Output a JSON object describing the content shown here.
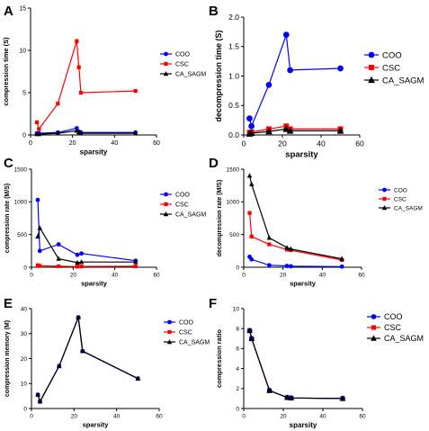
{
  "colors": {
    "COO": "#0000ff",
    "CSC": "#ff0000",
    "CA_SAGM": "#000000"
  },
  "chart_data": [
    {
      "panel": "A",
      "type": "line",
      "xlabel": "sparsity",
      "ylabel": "compression time (S)",
      "xlim": [
        0,
        60
      ],
      "ylim": [
        0,
        15
      ],
      "xticks": [
        0,
        20,
        40,
        60
      ],
      "yticks": [
        0,
        5,
        10,
        15
      ],
      "legend_position": "right",
      "series": [
        {
          "name": "COO",
          "x": [
            3,
            4,
            13,
            22,
            23,
            24,
            50
          ],
          "y": [
            0.2,
            0.2,
            0.3,
            0.8,
            0.4,
            0.3,
            0.3
          ]
        },
        {
          "name": "CSC",
          "x": [
            3,
            4,
            13,
            22,
            23,
            24,
            50
          ],
          "y": [
            1.5,
            0.7,
            3.7,
            11.1,
            8.0,
            5.0,
            5.2
          ]
        },
        {
          "name": "CA_SAGM",
          "x": [
            3,
            4,
            13,
            22,
            23,
            24,
            50
          ],
          "y": [
            0.1,
            0.1,
            0.2,
            0.5,
            0.3,
            0.2,
            0.2
          ]
        }
      ]
    },
    {
      "panel": "B",
      "type": "line",
      "xlabel": "sparsity",
      "ylabel": "decompression time (S)",
      "xlim": [
        0,
        60
      ],
      "ylim": [
        0,
        2.0
      ],
      "xticks": [
        0,
        20,
        40,
        60
      ],
      "yticks": [
        0.0,
        0.5,
        1.0,
        1.5,
        2.0
      ],
      "legend_position": "right",
      "series": [
        {
          "name": "COO",
          "x": [
            3,
            4,
            13,
            22,
            24,
            50
          ],
          "y": [
            0.28,
            0.15,
            0.85,
            1.7,
            1.1,
            1.13
          ]
        },
        {
          "name": "CSC",
          "x": [
            3,
            4,
            13,
            22,
            24,
            50
          ],
          "y": [
            0.04,
            0.05,
            0.1,
            0.15,
            0.1,
            0.1
          ]
        },
        {
          "name": "CA_SAGM",
          "x": [
            3,
            4,
            13,
            22,
            24,
            50
          ],
          "y": [
            0.02,
            0.03,
            0.06,
            0.1,
            0.07,
            0.07
          ]
        }
      ]
    },
    {
      "panel": "C",
      "type": "line",
      "xlabel": "sparsity",
      "ylabel": "compression rate (M/S)",
      "xlim": [
        0,
        60
      ],
      "ylim": [
        0,
        1500
      ],
      "xticks": [
        0,
        20,
        40,
        60
      ],
      "yticks": [
        0,
        500,
        1000,
        1500
      ],
      "legend_position": "right",
      "series": [
        {
          "name": "COO",
          "x": [
            3,
            4,
            13,
            22,
            24,
            50
          ],
          "y": [
            1030,
            250,
            350,
            190,
            210,
            100
          ]
        },
        {
          "name": "CSC",
          "x": [
            3,
            4,
            13,
            22,
            24,
            50
          ],
          "y": [
            30,
            20,
            15,
            10,
            12,
            15
          ]
        },
        {
          "name": "CA_SAGM",
          "x": [
            3,
            4,
            13,
            22,
            24,
            50
          ],
          "y": [
            470,
            600,
            130,
            70,
            80,
            80
          ]
        }
      ]
    },
    {
      "panel": "D",
      "type": "line",
      "xlabel": "sparsity",
      "ylabel": "decompression rate (M/S)",
      "xlim": [
        0,
        60
      ],
      "ylim": [
        0,
        1500
      ],
      "xticks": [
        0,
        20,
        40,
        60
      ],
      "yticks": [
        0,
        500,
        1000,
        1500
      ],
      "legend_position": "right",
      "series": [
        {
          "name": "COO",
          "x": [
            3,
            4,
            13,
            22,
            24,
            50
          ],
          "y": [
            160,
            120,
            30,
            20,
            15,
            10
          ]
        },
        {
          "name": "CSC",
          "x": [
            3,
            4,
            13,
            22,
            24,
            50
          ],
          "y": [
            830,
            470,
            350,
            270,
            260,
            110
          ]
        },
        {
          "name": "CA_SAGM",
          "x": [
            3,
            4,
            13,
            22,
            24,
            50
          ],
          "y": [
            1400,
            1270,
            450,
            300,
            280,
            130
          ]
        }
      ]
    },
    {
      "panel": "E",
      "type": "line",
      "xlabel": "sparsity",
      "ylabel": "compression memory (M)",
      "xlim": [
        0,
        60
      ],
      "ylim": [
        0,
        40
      ],
      "xticks": [
        0,
        20,
        40,
        60
      ],
      "yticks": [
        0,
        10,
        20,
        30,
        40
      ],
      "legend_position": "right",
      "series": [
        {
          "name": "COO",
          "x": [
            3,
            4,
            13,
            22,
            24,
            50
          ],
          "y": [
            5.5,
            2.8,
            17,
            36.5,
            23,
            12
          ]
        },
        {
          "name": "CSC",
          "x": [
            3,
            4,
            13,
            22,
            24,
            50
          ],
          "y": [
            5.5,
            2.8,
            17,
            36.5,
            23,
            12
          ]
        },
        {
          "name": "CA_SAGM",
          "x": [
            3,
            4,
            13,
            22,
            24,
            50
          ],
          "y": [
            5.5,
            2.8,
            17,
            36.5,
            23,
            12
          ]
        }
      ]
    },
    {
      "panel": "F",
      "type": "line",
      "xlabel": "sparsity",
      "ylabel": "compression ratio",
      "xlim": [
        0,
        60
      ],
      "ylim": [
        0,
        10
      ],
      "xticks": [
        0,
        20,
        40,
        60
      ],
      "yticks": [
        0,
        2,
        4,
        6,
        8,
        10
      ],
      "legend_position": "right",
      "series": [
        {
          "name": "COO",
          "x": [
            3,
            4,
            13,
            22,
            24,
            50
          ],
          "y": [
            7.8,
            7.0,
            1.8,
            1.1,
            1.05,
            1.0
          ]
        },
        {
          "name": "CSC",
          "x": [
            3,
            4,
            13,
            22,
            24,
            50
          ],
          "y": [
            7.8,
            7.0,
            1.8,
            1.1,
            1.05,
            1.0
          ]
        },
        {
          "name": "CA_SAGM",
          "x": [
            3,
            4,
            13,
            22,
            24,
            50
          ],
          "y": [
            7.8,
            7.0,
            1.8,
            1.1,
            1.05,
            1.0
          ]
        }
      ]
    }
  ]
}
